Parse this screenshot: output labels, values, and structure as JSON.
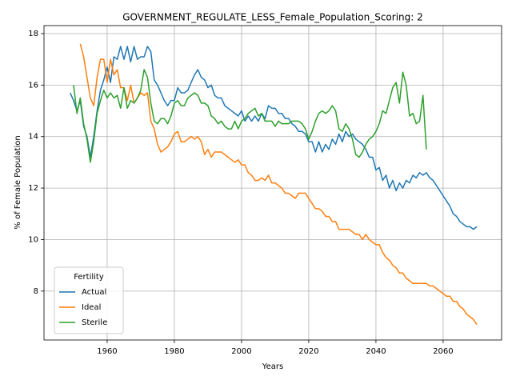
{
  "chart_data": {
    "type": "line",
    "title": "GOVERNMENT_REGULATE_LESS_Female_Population_Scoring: 2",
    "xlabel": "Years",
    "ylabel": "% of Female Population",
    "legend_title": "Fertility",
    "legend": "lower left",
    "grid": true,
    "xlim": [
      1941.2,
      2077.4
    ],
    "ylim": [
      6.1,
      18.31
    ],
    "xticks": [
      1960,
      1980,
      2000,
      2020,
      2040,
      2060
    ],
    "yticks": [
      8,
      10,
      12,
      14,
      16,
      18
    ],
    "x": [
      1949,
      1950,
      1951,
      1952,
      1953,
      1954,
      1955,
      1956,
      1957,
      1958,
      1959,
      1960,
      1961,
      1962,
      1963,
      1964,
      1965,
      1966,
      1967,
      1968,
      1969,
      1970,
      1971,
      1972,
      1973,
      1974,
      1975,
      1976,
      1977,
      1978,
      1979,
      1980,
      1981,
      1982,
      1983,
      1984,
      1985,
      1986,
      1987,
      1988,
      1989,
      1990,
      1991,
      1992,
      1993,
      1994,
      1995,
      1996,
      1997,
      1998,
      1999,
      2000,
      2001,
      2002,
      2003,
      2004,
      2005,
      2006,
      2007,
      2008,
      2009,
      2010,
      2011,
      2012,
      2013,
      2014,
      2015,
      2016,
      2017,
      2018,
      2019,
      2020,
      2021,
      2022,
      2023,
      2024,
      2025,
      2026,
      2027,
      2028,
      2029,
      2030,
      2031,
      2032,
      2033,
      2034,
      2035,
      2036,
      2037,
      2038,
      2039,
      2040,
      2041,
      2042,
      2043,
      2044,
      2045,
      2046,
      2047,
      2048,
      2049,
      2050,
      2051,
      2052,
      2053,
      2054,
      2055,
      2056,
      2057,
      2058,
      2059,
      2060,
      2061,
      2062,
      2063,
      2064,
      2065,
      2066,
      2067,
      2068,
      2069,
      2070
    ],
    "series": [
      {
        "name": "Actual",
        "color": "#1f77b4",
        "values": [
          15.7,
          15.4,
          15.0,
          15.4,
          14.4,
          14.0,
          13.2,
          14.0,
          15.0,
          15.8,
          16.2,
          16.7,
          16.1,
          17.1,
          17.0,
          17.5,
          17.0,
          17.5,
          16.9,
          17.5,
          17.0,
          17.1,
          17.1,
          17.5,
          17.3,
          16.2,
          16.0,
          15.7,
          15.4,
          15.2,
          15.4,
          15.4,
          15.9,
          15.7,
          15.7,
          15.8,
          16.1,
          16.4,
          16.6,
          16.3,
          16.2,
          15.9,
          16.0,
          15.6,
          15.5,
          15.5,
          15.2,
          15.1,
          15.0,
          14.9,
          14.8,
          15.0,
          14.6,
          14.8,
          14.6,
          14.8,
          14.6,
          14.9,
          14.7,
          15.2,
          15.1,
          15.1,
          14.9,
          14.9,
          14.7,
          14.7,
          14.5,
          14.4,
          14.2,
          14.2,
          14.1,
          13.8,
          13.8,
          13.4,
          13.8,
          13.4,
          13.7,
          13.5,
          13.9,
          13.7,
          14.1,
          13.8,
          14.2,
          14.0,
          14.1,
          13.9,
          13.8,
          13.7,
          13.5,
          13.2,
          13.2,
          12.7,
          12.8,
          12.3,
          12.5,
          12.0,
          12.3,
          11.9,
          12.2,
          12.0,
          12.3,
          12.2,
          12.5,
          12.4,
          12.6,
          12.5,
          12.6,
          12.4,
          12.3,
          12.1,
          11.9,
          11.7,
          11.5,
          11.3,
          11.0,
          10.9,
          10.7,
          10.6,
          10.5,
          10.5,
          10.4,
          10.5
        ]
      },
      {
        "name": "Ideal",
        "color": "#ff7f0e",
        "values": [
          null,
          null,
          null,
          17.6,
          17.1,
          16.3,
          15.5,
          15.2,
          16.3,
          17.0,
          17.0,
          16.1,
          17.0,
          16.4,
          16.6,
          15.9,
          15.9,
          15.4,
          16.0,
          15.3,
          15.5,
          15.7,
          15.6,
          15.7,
          14.6,
          14.3,
          13.7,
          13.4,
          13.5,
          13.6,
          13.8,
          14.1,
          14.2,
          13.8,
          13.8,
          13.9,
          14.0,
          13.9,
          14.0,
          13.8,
          13.3,
          13.5,
          13.2,
          13.4,
          13.4,
          13.4,
          13.3,
          13.2,
          13.1,
          13.0,
          13.1,
          12.9,
          12.9,
          12.6,
          12.5,
          12.3,
          12.3,
          12.4,
          12.3,
          12.5,
          12.2,
          12.2,
          12.1,
          12.0,
          11.8,
          11.8,
          11.7,
          11.6,
          11.8,
          11.8,
          11.8,
          11.6,
          11.4,
          11.2,
          11.2,
          11.1,
          10.9,
          10.9,
          10.7,
          10.7,
          10.4,
          10.4,
          10.4,
          10.4,
          10.3,
          10.2,
          10.2,
          10.0,
          10.2,
          10.0,
          9.9,
          9.8,
          9.8,
          9.5,
          9.3,
          9.2,
          9.0,
          8.9,
          8.7,
          8.7,
          8.5,
          8.4,
          8.3,
          8.3,
          8.3,
          8.3,
          8.3,
          8.2,
          8.2,
          8.1,
          8.0,
          7.9,
          7.8,
          7.8,
          7.6,
          7.6,
          7.4,
          7.3,
          7.1,
          7.0,
          6.9,
          6.7
        ]
      },
      {
        "name": "Sterile",
        "color": "#2ca02c",
        "values": [
          null,
          16.0,
          14.9,
          15.5,
          14.5,
          13.9,
          13.0,
          13.8,
          14.9,
          15.4,
          15.8,
          15.5,
          15.7,
          15.5,
          15.6,
          15.1,
          15.9,
          15.1,
          15.4,
          15.3,
          15.5,
          15.8,
          16.6,
          16.3,
          15.3,
          14.6,
          14.5,
          14.7,
          14.7,
          14.5,
          14.8,
          15.3,
          15.4,
          15.2,
          15.2,
          15.5,
          15.6,
          15.7,
          15.6,
          15.3,
          15.3,
          15.2,
          14.8,
          14.7,
          14.5,
          14.6,
          14.4,
          14.3,
          14.3,
          14.6,
          14.3,
          14.6,
          14.7,
          14.9,
          15.0,
          15.1,
          14.8,
          14.9,
          14.6,
          14.6,
          14.6,
          14.4,
          14.6,
          14.5,
          14.5,
          14.5,
          14.6,
          14.6,
          14.6,
          14.5,
          14.3,
          13.9,
          14.2,
          14.6,
          14.9,
          15.0,
          14.9,
          15.0,
          15.2,
          15.0,
          14.3,
          14.2,
          14.5,
          14.3,
          13.9,
          13.3,
          13.2,
          13.4,
          13.7,
          13.9,
          14.0,
          14.2,
          14.5,
          15.0,
          14.9,
          15.4,
          15.9,
          16.1,
          15.3,
          16.5,
          16.0,
          14.8,
          14.9,
          14.5,
          14.6,
          15.6,
          13.5,
          null,
          null,
          null,
          null,
          null,
          null,
          null,
          null,
          null,
          null,
          null,
          null,
          null,
          null,
          null
        ]
      }
    ]
  }
}
